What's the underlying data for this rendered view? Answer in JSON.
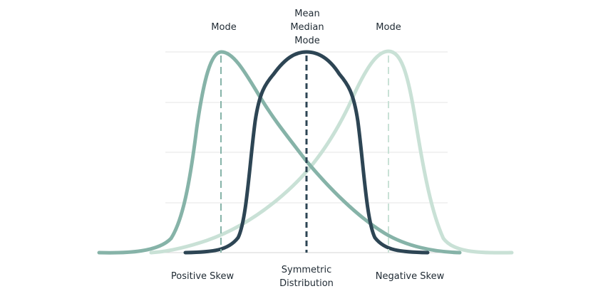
{
  "labels": {
    "top_left": "Mode",
    "top_center": [
      "Mean",
      "Median",
      "Mode"
    ],
    "top_right": "Mode",
    "bottom_left": "Positive Skew",
    "bottom_center": [
      "Symmetric",
      "Distribution"
    ],
    "bottom_right": "Negative Skew"
  },
  "colors": {
    "positive_skew": "#86b3a8",
    "symmetric": "#2d4554",
    "negative_skew": "#c9e1d6",
    "text": "#1f2a33"
  }
}
